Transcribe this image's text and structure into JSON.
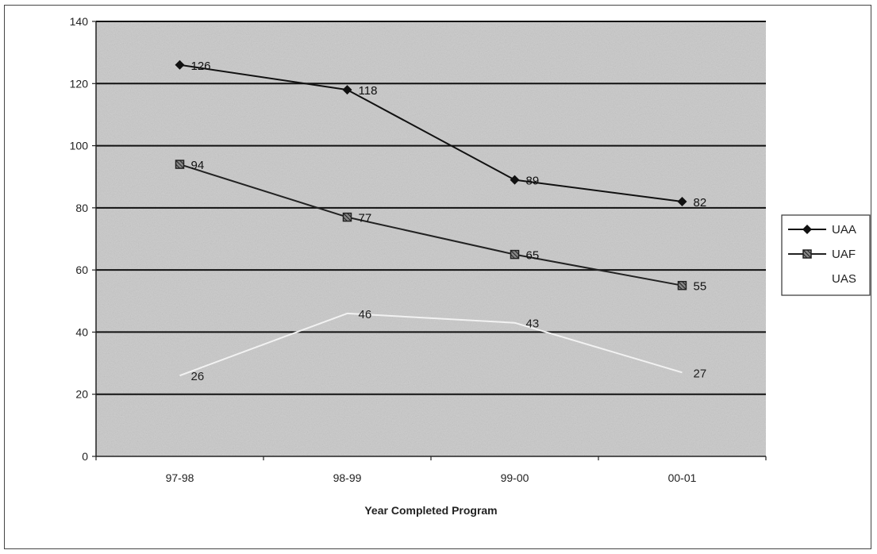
{
  "chart_data": {
    "type": "line",
    "title": "",
    "xlabel": "Year Completed Program",
    "ylabel": "",
    "categories": [
      "97-98",
      "98-99",
      "99-00",
      "00-01"
    ],
    "ylim": [
      0,
      140
    ],
    "yticks": [
      0,
      20,
      40,
      60,
      80,
      100,
      120,
      140
    ],
    "grid": true,
    "legend_position": "right",
    "series": [
      {
        "name": "UAA",
        "values": [
          126,
          118,
          89,
          82
        ],
        "color": "#111111",
        "marker": "diamond"
      },
      {
        "name": "UAF",
        "values": [
          94,
          77,
          65,
          55
        ],
        "color": "#222222",
        "marker": "square"
      },
      {
        "name": "UAS",
        "values": [
          26,
          46,
          43,
          27
        ],
        "color": "#f2f2f2",
        "marker": "none"
      }
    ],
    "plot_background": "#c9c9c9"
  }
}
